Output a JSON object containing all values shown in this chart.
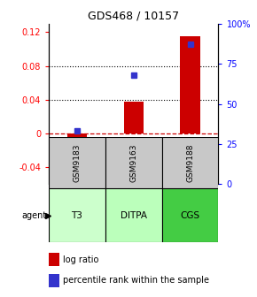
{
  "title": "GDS468 / 10157",
  "samples": [
    "GSM9183",
    "GSM9163",
    "GSM9188"
  ],
  "agents": [
    "T3",
    "DITPA",
    "CGS"
  ],
  "log_ratios": [
    -0.022,
    0.038,
    0.115
  ],
  "percentile_ranks": [
    0.33,
    0.68,
    0.87
  ],
  "ylim_left": [
    -0.06,
    0.13
  ],
  "ylim_right": [
    0.0,
    1.0
  ],
  "yticks_left": [
    -0.04,
    0.0,
    0.04,
    0.08,
    0.12
  ],
  "yticks_right": [
    0.0,
    0.25,
    0.5,
    0.75,
    1.0
  ],
  "ytick_labels_left": [
    "-0.04",
    "0",
    "0.04",
    "0.08",
    "0.12"
  ],
  "ytick_labels_right": [
    "0",
    "25",
    "50",
    "75",
    "100%"
  ],
  "bar_color": "#cc0000",
  "dot_color": "#3333cc",
  "agent_colors": [
    "#ccffcc",
    "#bbffbb",
    "#44cc44"
  ],
  "gsm_bg_color": "#c8c8c8",
  "dotted_line_values": [
    0.04,
    0.08
  ],
  "zero_line_color": "#cc0000",
  "bar_width": 0.35
}
